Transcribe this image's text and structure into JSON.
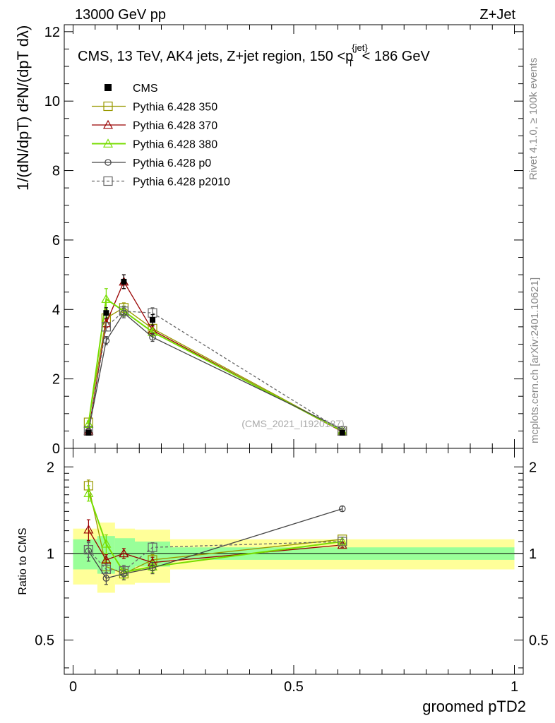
{
  "header": {
    "left_title": "13000 GeV pp",
    "right_title": "Z+Jet",
    "rivet_label": "Rivet 4.1.0, ≥ 100k events",
    "mcplots_label": "mcplots.cern.ch [arXiv:2401.10621]"
  },
  "chart_data": {
    "type": "line",
    "title": "CMS, 13 TeV, AK4 jets, Z+jet region, 150 <p_T^{jet}< 186 GeV",
    "watermark": "(CMS_2021_I1920187)",
    "xlabel": "groomed pTD2",
    "ylabel_main": "1/(dN/dpT) d²N/(dpT dλ)",
    "ylabel_ratio": "Ratio to CMS",
    "xlim": [
      -0.02,
      1.02
    ],
    "ylim_main": [
      0,
      12.2
    ],
    "ylim_ratio": [
      0.38,
      2.32
    ],
    "x_ticks": [
      {
        "value": 0,
        "label": "0"
      },
      {
        "value": 0.5,
        "label": "0.5"
      },
      {
        "value": 1,
        "label": "1"
      }
    ],
    "y_ticks_main": [
      {
        "value": 0,
        "label": "0"
      },
      {
        "value": 2,
        "label": "2"
      },
      {
        "value": 4,
        "label": "4"
      },
      {
        "value": 6,
        "label": "6"
      },
      {
        "value": 8,
        "label": "8"
      },
      {
        "value": 10,
        "label": "10"
      },
      {
        "value": 12,
        "label": "12"
      }
    ],
    "y_ticks_ratio": [
      {
        "value": 0.5,
        "label": "0.5"
      },
      {
        "value": 1,
        "label": "1"
      },
      {
        "value": 2,
        "label": "2"
      }
    ],
    "x": [
      0.035,
      0.075,
      0.115,
      0.18,
      0.61
    ],
    "bin_edges": [
      0,
      0.055,
      0.095,
      0.14,
      0.22,
      1.0
    ],
    "reference": {
      "name": "CMS",
      "values": [
        0.45,
        3.9,
        4.8,
        3.7,
        0.45
      ],
      "errors": [
        0.05,
        0.15,
        0.2,
        0.15,
        0.05
      ]
    },
    "ratio_band_inner": [
      0.88,
      0.85,
      0.87,
      0.9,
      0.95
    ],
    "ratio_band_inner_hi": [
      1.12,
      1.15,
      1.13,
      1.1,
      1.05
    ],
    "ratio_band_outer": [
      0.78,
      0.73,
      0.78,
      0.79,
      0.88
    ],
    "ratio_band_outer_hi": [
      1.22,
      1.28,
      1.22,
      1.21,
      1.12
    ],
    "series": [
      {
        "name": "Pythia 6.428 350",
        "color": "#999900",
        "marker": "square-open",
        "dash": "",
        "values": [
          0.75,
          3.75,
          4.05,
          3.45,
          0.5
        ],
        "errors": [
          0.04,
          0.12,
          0.14,
          0.12,
          0.03
        ],
        "ratio": [
          1.72,
          0.9,
          0.85,
          0.95,
          1.12
        ],
        "ratio_err": [
          0.08,
          0.05,
          0.04,
          0.04,
          0.02
        ]
      },
      {
        "name": "Pythia 6.428 370",
        "color": "#990000",
        "marker": "triangle-open",
        "dash": "",
        "values": [
          0.5,
          3.6,
          4.8,
          3.4,
          0.48
        ],
        "errors": [
          0.04,
          0.12,
          0.2,
          0.12,
          0.03
        ],
        "ratio": [
          1.21,
          0.95,
          1.0,
          0.93,
          1.07
        ],
        "ratio_err": [
          0.1,
          0.04,
          0.04,
          0.04,
          0.02
        ]
      },
      {
        "name": "Pythia 6.428 380",
        "color": "#77dd00",
        "marker": "triangle-open",
        "dash": "",
        "values": [
          0.7,
          4.3,
          3.95,
          3.35,
          0.5
        ],
        "errors": [
          0.05,
          0.3,
          0.15,
          0.12,
          0.03
        ],
        "ratio": [
          1.62,
          1.08,
          0.86,
          0.9,
          1.1
        ],
        "ratio_err": [
          0.1,
          0.08,
          0.04,
          0.04,
          0.02
        ]
      },
      {
        "name": "Pythia 6.428 p0",
        "color": "#444444",
        "marker": "circle-open",
        "dash": "",
        "values": [
          0.5,
          3.1,
          3.9,
          3.2,
          0.55
        ],
        "errors": [
          0.04,
          0.12,
          0.14,
          0.12,
          0.03
        ],
        "ratio": [
          1.02,
          0.82,
          0.85,
          0.89,
          1.43
        ],
        "ratio_err": [
          0.08,
          0.04,
          0.04,
          0.04,
          0.03
        ]
      },
      {
        "name": "Pythia 6.428 p2010",
        "color": "#666666",
        "marker": "square-open",
        "dash": "4,3",
        "values": [
          0.5,
          3.5,
          3.95,
          3.9,
          0.5
        ],
        "errors": [
          0.04,
          0.12,
          0.14,
          0.15,
          0.03
        ],
        "ratio": [
          1.03,
          0.88,
          0.87,
          1.05,
          1.1
        ],
        "ratio_err": [
          0.06,
          0.04,
          0.04,
          0.04,
          0.02
        ]
      }
    ]
  }
}
